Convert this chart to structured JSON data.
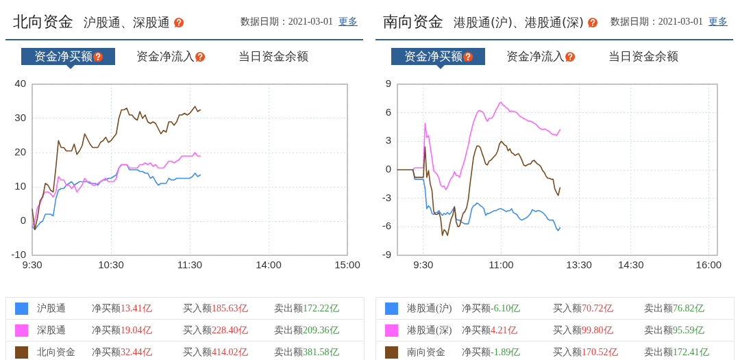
{
  "chart_data": [
    {
      "type": "line",
      "title": "北向资金",
      "subtitle": "沪股通、深股通",
      "annotations": [
        "数据日期：2021-03-01",
        "更多",
        "资金净买额",
        "资金净流入",
        "当日资金余额",
        "净买额13.41亿",
        "买入额185.63亿",
        "卖出额172.22亿",
        "净买额19.04亿",
        "买入额228.40亿",
        "卖出额209.36亿",
        "净买额32.44亿",
        "买入额414.02亿",
        "卖出额381.58亿"
      ],
      "categories": [
        "9:30",
        null,
        null,
        null,
        null,
        null,
        null,
        null,
        null,
        null,
        null,
        null,
        null,
        null,
        null,
        null,
        null,
        null,
        null,
        null,
        null,
        null,
        null,
        null,
        null,
        null,
        null,
        null,
        null,
        null,
        "10:30",
        null,
        null,
        null,
        null,
        null,
        null,
        null,
        null,
        null,
        null,
        null,
        null,
        null,
        null,
        null,
        null,
        null,
        null,
        null,
        null,
        null,
        null,
        null,
        null,
        null,
        null,
        null,
        null,
        null,
        "11:30",
        null,
        null,
        null,
        null,
        null,
        null,
        null,
        null,
        null,
        null,
        null,
        null,
        null,
        null,
        null,
        null,
        null,
        null,
        null,
        null,
        null,
        null,
        null,
        null,
        null,
        null,
        null,
        null,
        null,
        "14:00",
        null,
        null,
        null,
        null,
        null,
        null,
        null,
        null,
        null,
        null,
        null,
        null,
        null,
        null,
        null,
        null,
        null,
        null,
        null,
        null,
        null,
        null,
        null,
        null,
        null,
        null,
        null,
        null,
        null,
        "15:00"
      ],
      "ylim": [
        -10,
        40
      ],
      "yticks": [
        -10,
        0,
        10,
        20,
        30,
        40
      ],
      "grid": true,
      "legend": "bottom",
      "series": [
        {
          "name": "沪股通",
          "color": "#3d8ef8",
          "values": [
            -1.5,
            -2.5,
            -1.5,
            -0.5,
            0,
            2,
            2,
            2,
            1.5,
            6.5,
            9,
            9.5,
            9.5,
            10.5,
            11,
            11.5,
            10.5,
            11,
            11.5,
            11.5,
            11.5,
            11.5,
            11,
            11,
            11,
            10.5,
            11.5,
            12,
            12,
            12.5,
            12.5,
            13,
            13.5,
            15.5,
            16.5,
            16.5,
            16.5,
            15,
            15,
            15,
            15,
            14.5,
            14.5,
            14,
            14,
            12.5,
            13,
            11.5,
            10.5,
            11,
            11,
            11,
            12.5,
            12,
            12,
            12.5,
            12.5,
            12.5,
            12.5,
            12.5,
            12.5,
            13,
            14,
            13,
            13.5,
            null,
            null,
            null,
            null,
            null,
            null,
            null,
            null,
            null,
            null,
            null,
            null,
            null,
            null,
            null,
            null,
            null,
            null,
            null,
            null,
            null,
            null,
            null,
            null,
            null,
            null,
            null,
            null,
            null,
            null,
            null,
            null,
            null,
            null,
            null,
            null,
            null,
            null,
            null,
            null,
            null,
            null,
            null,
            null,
            null,
            null,
            null,
            null,
            null,
            null,
            null,
            null,
            null,
            null,
            null,
            null
          ]
        },
        {
          "name": "深股通",
          "color": "#ff66ff",
          "values": [
            -1.5,
            0,
            4,
            5,
            7.5,
            8.5,
            8.5,
            8,
            7,
            8.5,
            13,
            12,
            12,
            10.5,
            10.5,
            9.5,
            10.5,
            8.5,
            9.5,
            10.5,
            12.5,
            11.5,
            11.5,
            10.5,
            10.5,
            11,
            11.5,
            12,
            12.5,
            11.5,
            11.5,
            11.5,
            12.5,
            15.5,
            16.5,
            16.5,
            16.5,
            15.5,
            15.5,
            15.5,
            15.5,
            16.5,
            16.5,
            17,
            16.5,
            17,
            16,
            16.5,
            15.5,
            15.5,
            15.5,
            16.5,
            17.5,
            17.5,
            17,
            17.5,
            18,
            19,
            19,
            19,
            19,
            19,
            20,
            19,
            19,
            null,
            null,
            null,
            null,
            null,
            null,
            null,
            null,
            null,
            null,
            null,
            null,
            null,
            null,
            null,
            null,
            null,
            null,
            null,
            null,
            null,
            null,
            null,
            null,
            null,
            null,
            null,
            null,
            null,
            null,
            null,
            null,
            null,
            null,
            null,
            null,
            null,
            null,
            null,
            null,
            null,
            null,
            null,
            null,
            null,
            null,
            null,
            null,
            null,
            null,
            null,
            null,
            null,
            null,
            null,
            null
          ]
        },
        {
          "name": "北向资金",
          "color": "#7a4a1c",
          "values": [
            3.5,
            -2.5,
            1,
            6,
            7,
            11,
            10.5,
            9,
            8.5,
            15.5,
            23.5,
            21.5,
            21.5,
            20.5,
            20.5,
            20.5,
            22.5,
            19.5,
            20.5,
            22,
            25.5,
            24,
            22.5,
            21.5,
            21.5,
            21.5,
            23,
            23.5,
            24.5,
            23,
            23.5,
            24.5,
            25.5,
            30,
            32.5,
            32.5,
            33,
            31,
            31,
            30,
            29.5,
            32,
            30,
            31,
            29,
            28.5,
            29,
            28.5,
            27,
            25.5,
            26.5,
            26,
            29,
            29,
            28,
            29,
            31,
            31,
            31.5,
            31,
            31.5,
            32.5,
            33.5,
            32,
            32.5,
            null,
            null,
            null,
            null,
            null,
            null,
            null,
            null,
            null,
            null,
            null,
            null,
            null,
            null,
            null,
            null,
            null,
            null,
            null,
            null,
            null,
            null,
            null,
            null,
            null,
            null,
            null,
            null,
            null,
            null,
            null,
            null,
            null,
            null,
            null,
            null,
            null,
            null,
            null,
            null,
            null,
            null,
            null,
            null,
            null,
            null,
            null,
            null,
            null,
            null,
            null,
            null,
            null,
            null,
            null,
            null
          ]
        }
      ]
    },
    {
      "type": "line",
      "title": "南向资金",
      "subtitle": "港股通(沪)、港股通(深)",
      "annotations": [
        "数据日期：2021-03-01",
        "更多",
        "资金净买额",
        "资金净流入",
        "当日资金余额",
        "净买额-6.10亿",
        "买入额70.72亿",
        "卖出额76.82亿",
        "净买额4.21亿",
        "买入额99.80亿",
        "卖出额95.59亿",
        "净买额-1.89亿",
        "买入额170.52亿",
        "卖出额172.41亿"
      ],
      "categories": [
        null,
        null,
        null,
        null,
        null,
        null,
        null,
        null,
        null,
        null,
        null,
        null,
        null,
        null,
        null,
        "9:30",
        null,
        null,
        null,
        null,
        null,
        null,
        null,
        null,
        null,
        null,
        null,
        null,
        null,
        null,
        null,
        null,
        null,
        null,
        null,
        null,
        null,
        null,
        null,
        null,
        null,
        null,
        null,
        null,
        null,
        null,
        null,
        null,
        null,
        null,
        null,
        null,
        null,
        null,
        null,
        null,
        null,
        null,
        null,
        null,
        "11:00",
        null,
        null,
        null,
        null,
        null,
        null,
        null,
        null,
        null,
        null,
        null,
        null,
        null,
        null,
        null,
        null,
        null,
        null,
        null,
        null,
        null,
        null,
        null,
        null,
        null,
        null,
        null,
        null,
        null,
        null,
        null,
        null,
        null,
        null,
        null,
        null,
        null,
        null,
        null,
        null,
        null,
        null,
        null,
        null,
        "13:30",
        null,
        null,
        null,
        null,
        null,
        null,
        null,
        null,
        null,
        null,
        null,
        null,
        null,
        null,
        null,
        null,
        null,
        null,
        null,
        null,
        null,
        null,
        null,
        null,
        null,
        null,
        null,
        null,
        null,
        "14:30",
        null,
        null,
        null,
        null,
        null,
        null,
        null,
        null,
        null,
        null,
        null,
        null,
        null,
        null,
        null,
        null,
        null,
        null,
        null,
        null,
        null,
        null,
        null,
        null,
        null,
        null,
        null,
        null,
        null,
        null,
        null,
        null,
        null,
        null,
        null,
        null,
        null,
        null,
        null,
        null,
        null,
        null,
        null,
        null,
        "16:00",
        null,
        null,
        null,
        null,
        null
      ],
      "ylim": [
        -9,
        9
      ],
      "yticks": [
        -9,
        -6,
        -3,
        0,
        3,
        6,
        9
      ],
      "grid": true,
      "legend": "bottom",
      "series": [
        {
          "name": "港股通(沪)",
          "color": "#3d8ef8",
          "values": [
            null,
            null,
            null,
            null,
            null,
            null,
            null,
            null,
            null,
            0,
            -1,
            -1,
            -1,
            -1,
            -1,
            -1,
            -2,
            -4.1,
            -3.8,
            -4,
            -4.6,
            -4.7,
            -4.5,
            -4.5,
            -4.3,
            -4.6,
            -4.8,
            -4.6,
            -4.7,
            -4.5,
            -4.7,
            -4.5,
            -4.2,
            -3.9,
            -5.2,
            -5.3,
            -5.3,
            -5.5,
            -5.6,
            -5.7,
            -5.7,
            -5.7,
            -5,
            -4.1,
            -3.8,
            -3.7,
            -3.5,
            -3.6,
            -3.8,
            -3.9,
            -4.1,
            -4.8,
            -4.6,
            -4.6,
            -4.5,
            -4.4,
            -4.3,
            -4.3,
            -4.2,
            -4.1,
            -4.1,
            -4.2,
            -4.3,
            -4.4,
            -4.3,
            -4.3,
            -4.1,
            -4.5,
            -4.6,
            -4.7,
            -5,
            -5.2,
            -5.3,
            -5.2,
            -5.1,
            -5,
            -4.8,
            -4.6,
            -4.2,
            -4.3,
            -4.4,
            -4.3,
            -4.3,
            -4.4,
            -4.5,
            -4.7,
            -4.9,
            -5.2,
            -5.3,
            -5.3,
            -5.3,
            -5.7,
            -6.2,
            -6.4,
            -6.1,
            null,
            null,
            null,
            null,
            null,
            null,
            null,
            null,
            null,
            null,
            null,
            null,
            null,
            null,
            null,
            null,
            null,
            null,
            null,
            null,
            null,
            null,
            null,
            null,
            null,
            null,
            null,
            null,
            null,
            null,
            null,
            null,
            null,
            null,
            null,
            null,
            null,
            null,
            null,
            null,
            null,
            null,
            null,
            null,
            null,
            null,
            null,
            null,
            null,
            null,
            null,
            null,
            null,
            null,
            null,
            null,
            null,
            null,
            null,
            null,
            null,
            null,
            null,
            null,
            null,
            null,
            null,
            null,
            null,
            null,
            null,
            null,
            null,
            null,
            null,
            null,
            null,
            null,
            null,
            null,
            null,
            null,
            null,
            null,
            null,
            null,
            null,
            null,
            null,
            null,
            null
          ]
        },
        {
          "name": "港股通(深)",
          "color": "#ff66ff",
          "values": [
            null,
            null,
            null,
            null,
            null,
            null,
            null,
            null,
            null,
            0,
            0.2,
            0.2,
            0.2,
            0.2,
            0.2,
            0.2,
            4.9,
            3.4,
            3.6,
            2.4,
            1.2,
            -0.1,
            -0.3,
            -0.5,
            -0.9,
            -1.6,
            -1.8,
            -1.7,
            -2.1,
            -1.8,
            -1.3,
            -0.9,
            -0.7,
            -0.2,
            -0.6,
            -0.6,
            -0.8,
            0,
            0.5,
            1.1,
            1.9,
            2.6,
            3.6,
            4.3,
            5,
            5.5,
            6,
            6.2,
            6.2,
            6.1,
            5.9,
            5.4,
            5.1,
            5.4,
            5.4,
            5.5,
            5.9,
            6.3,
            6.6,
            7,
            7.1,
            6.8,
            6.7,
            6.5,
            6.4,
            6.1,
            6.2,
            6.1,
            6.1,
            6,
            5.8,
            5.6,
            5.5,
            5.4,
            5.3,
            5.2,
            5.1,
            5.1,
            5,
            4.9,
            4.8,
            4.6,
            4.4,
            4.3,
            4.2,
            4.3,
            4.2,
            4.1,
            4,
            3.8,
            3.7,
            3.7,
            3.6,
            3.9,
            4.2,
            null,
            null,
            null,
            null,
            null,
            null,
            null,
            null,
            null,
            null,
            null,
            null,
            null,
            null,
            null,
            null,
            null,
            null,
            null,
            null,
            null,
            null,
            null,
            null,
            null,
            null,
            null,
            null,
            null,
            null,
            null,
            null,
            null,
            null,
            null,
            null,
            null,
            null,
            null,
            null,
            null,
            null,
            null,
            null,
            null,
            null,
            null,
            null,
            null,
            null,
            null,
            null,
            null,
            null,
            null,
            null,
            null,
            null,
            null,
            null,
            null,
            null,
            null,
            null,
            null,
            null,
            null,
            null,
            null,
            null,
            null,
            null,
            null,
            null,
            null,
            null,
            null,
            null,
            null,
            null,
            null,
            null,
            null,
            null,
            null,
            null,
            null,
            null,
            null,
            null,
            null
          ]
        },
        {
          "name": "南向资金",
          "color": "#7a4a1c",
          "values": [
            0,
            0,
            0,
            0,
            0,
            0,
            0,
            0,
            0,
            0,
            -0.8,
            -0.8,
            -0.8,
            -0.8,
            -0.8,
            -0.8,
            2.4,
            -0.8,
            -0.1,
            -1.5,
            -2.2,
            -4.4,
            -4.7,
            -4.7,
            -4.5,
            -5.1,
            -6.9,
            -6.3,
            -6.5,
            -6.9,
            -6,
            -5.2,
            -4.8,
            -3.9,
            -5.5,
            -6,
            -5.9,
            -5.2,
            -4.6,
            -4.4,
            -4,
            -3.1,
            -1.5,
            -0.1,
            1.3,
            2,
            2.5,
            2.5,
            2.3,
            1.7,
            1.2,
            0.6,
            0.5,
            0.9,
            1,
            1.2,
            1.4,
            1.6,
            2,
            2.7,
            3,
            2.8,
            2.6,
            2.5,
            2,
            2.2,
            1.8,
            1.7,
            1.5,
            1.6,
            1.7,
            1.4,
            1,
            0.5,
            0.4,
            0.5,
            0.6,
            0.6,
            0.9,
            1,
            0.8,
            0.6,
            0.5,
            0.3,
            -0.1,
            -0.3,
            -0.7,
            -0.9,
            -0.9,
            -1,
            -1,
            -2,
            -2.4,
            -2.7,
            -1.9,
            null,
            null,
            null,
            null,
            null,
            null,
            null,
            null,
            null,
            null,
            null,
            null,
            null,
            null,
            null,
            null,
            null,
            null,
            null,
            null,
            null,
            null,
            null,
            null,
            null,
            null,
            null,
            null,
            null,
            null,
            null,
            null,
            null,
            null,
            null,
            null,
            null,
            null,
            null,
            null,
            null,
            null,
            null,
            null,
            null,
            null,
            null,
            null,
            null,
            null,
            null,
            null,
            null,
            null,
            null,
            null,
            null,
            null,
            null,
            null,
            null,
            null,
            null,
            null,
            null,
            null,
            null,
            null,
            null,
            null,
            null,
            null,
            null,
            null,
            null,
            null,
            null,
            null,
            null,
            null,
            null,
            null,
            null,
            null,
            null,
            null,
            null,
            null,
            null,
            null,
            null
          ]
        }
      ]
    }
  ]
}
